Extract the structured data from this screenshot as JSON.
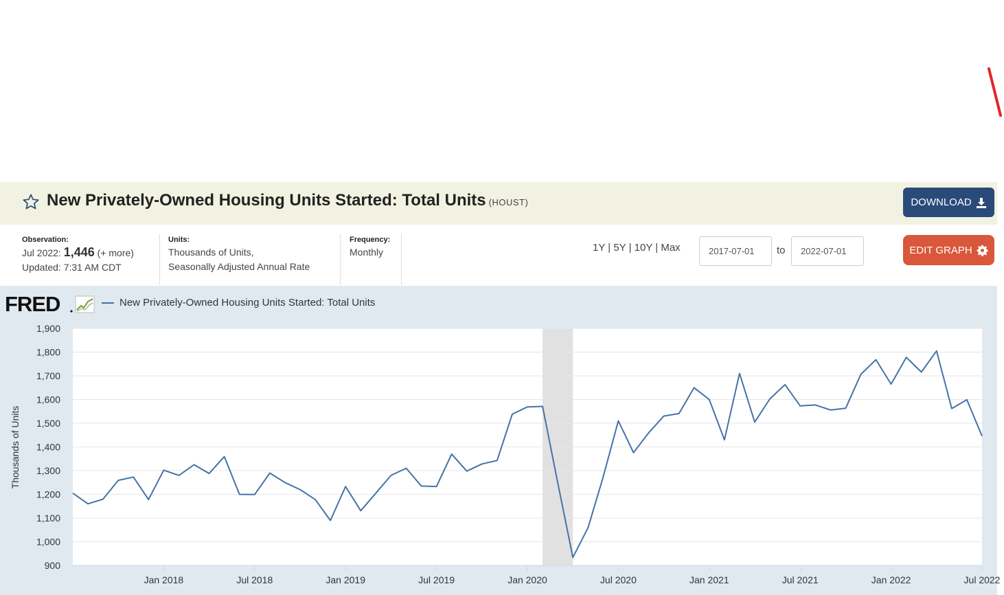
{
  "header": {
    "title": "New Privately-Owned Housing Units Started: Total Units",
    "series_code": "(HOUST)",
    "download_label": "DOWNLOAD"
  },
  "meta": {
    "observation_label": "Observation:",
    "observation_date": "Jul 2022:",
    "observation_value": "1,446",
    "observation_more": "(+ more)",
    "updated": "Updated: 7:31 AM CDT",
    "units_label": "Units:",
    "units_line1": "Thousands of Units,",
    "units_line2": "Seasonally Adjusted Annual Rate",
    "frequency_label": "Frequency:",
    "frequency_value": "Monthly"
  },
  "controls": {
    "range_1y": "1Y",
    "range_5y": "5Y",
    "range_10y": "10Y",
    "range_max": "Max",
    "separator": "|",
    "start_date": "2017-07-01",
    "to_label": "to",
    "end_date": "2022-07-01",
    "edit_label": "EDIT GRAPH"
  },
  "colors": {
    "accent_blue": "#2a4b7a",
    "edit_orange": "#d9573a",
    "series_line": "#4572a7",
    "recession_shade": "#e1e1e1",
    "chart_background": "#e1e9f0"
  },
  "icons": {
    "favorite": "star-icon",
    "download": "download-icon",
    "edit": "gear-icon"
  },
  "chart_data": {
    "type": "line",
    "legend_label": "New Privately-Owned Housing Units Started: Total Units",
    "ylabel": "Thousands of Units",
    "xlabel": "",
    "ylim": [
      900,
      1900
    ],
    "yticks": [
      900,
      1000,
      1100,
      1200,
      1300,
      1400,
      1500,
      1600,
      1700,
      1800,
      1900
    ],
    "ytick_labels": [
      "900",
      "1,000",
      "1,100",
      "1,200",
      "1,300",
      "1,400",
      "1,500",
      "1,600",
      "1,700",
      "1,800",
      "1,900"
    ],
    "xlim": [
      "2017-07",
      "2022-07"
    ],
    "xticks": [
      "2018-01",
      "2018-07",
      "2019-01",
      "2019-07",
      "2020-01",
      "2020-07",
      "2021-01",
      "2021-07",
      "2022-01",
      "2022-07"
    ],
    "xtick_labels": [
      "Jan 2018",
      "Jul 2018",
      "Jan 2019",
      "Jul 2019",
      "Jan 2020",
      "Jul 2020",
      "Jan 2021",
      "Jul 2021",
      "Jan 2022",
      "Jul 2022"
    ],
    "recession": {
      "start": "2020-02",
      "end": "2020-04"
    },
    "grid": true,
    "series": [
      {
        "name": "New Privately-Owned Housing Units Started: Total Units",
        "color": "#4572a7",
        "x": [
          "2017-07",
          "2017-08",
          "2017-09",
          "2017-10",
          "2017-11",
          "2017-12",
          "2018-01",
          "2018-02",
          "2018-03",
          "2018-04",
          "2018-05",
          "2018-06",
          "2018-07",
          "2018-08",
          "2018-09",
          "2018-10",
          "2018-11",
          "2018-12",
          "2019-01",
          "2019-02",
          "2019-03",
          "2019-04",
          "2019-05",
          "2019-06",
          "2019-07",
          "2019-08",
          "2019-09",
          "2019-10",
          "2019-11",
          "2019-12",
          "2020-01",
          "2020-02",
          "2020-03",
          "2020-04",
          "2020-05",
          "2020-06",
          "2020-07",
          "2020-08",
          "2020-09",
          "2020-10",
          "2020-11",
          "2020-12",
          "2021-01",
          "2021-02",
          "2021-03",
          "2021-04",
          "2021-05",
          "2021-06",
          "2021-07",
          "2021-08",
          "2021-09",
          "2021-10",
          "2021-11",
          "2021-12",
          "2022-01",
          "2022-02",
          "2022-03",
          "2022-04",
          "2022-05",
          "2022-06",
          "2022-07"
        ],
        "values": [
          1205,
          1160,
          1180,
          1259,
          1273,
          1178,
          1302,
          1280,
          1325,
          1288,
          1359,
          1200,
          1199,
          1290,
          1250,
          1220,
          1178,
          1090,
          1233,
          1131,
          1205,
          1280,
          1310,
          1235,
          1233,
          1370,
          1298,
          1328,
          1343,
          1538,
          1569,
          1571,
          1250,
          934,
          1059,
          1273,
          1510,
          1376,
          1459,
          1530,
          1541,
          1650,
          1600,
          1430,
          1710,
          1505,
          1603,
          1663,
          1573,
          1577,
          1556,
          1563,
          1706,
          1768,
          1665,
          1778,
          1716,
          1805,
          1562,
          1599,
          1446
        ]
      }
    ]
  }
}
